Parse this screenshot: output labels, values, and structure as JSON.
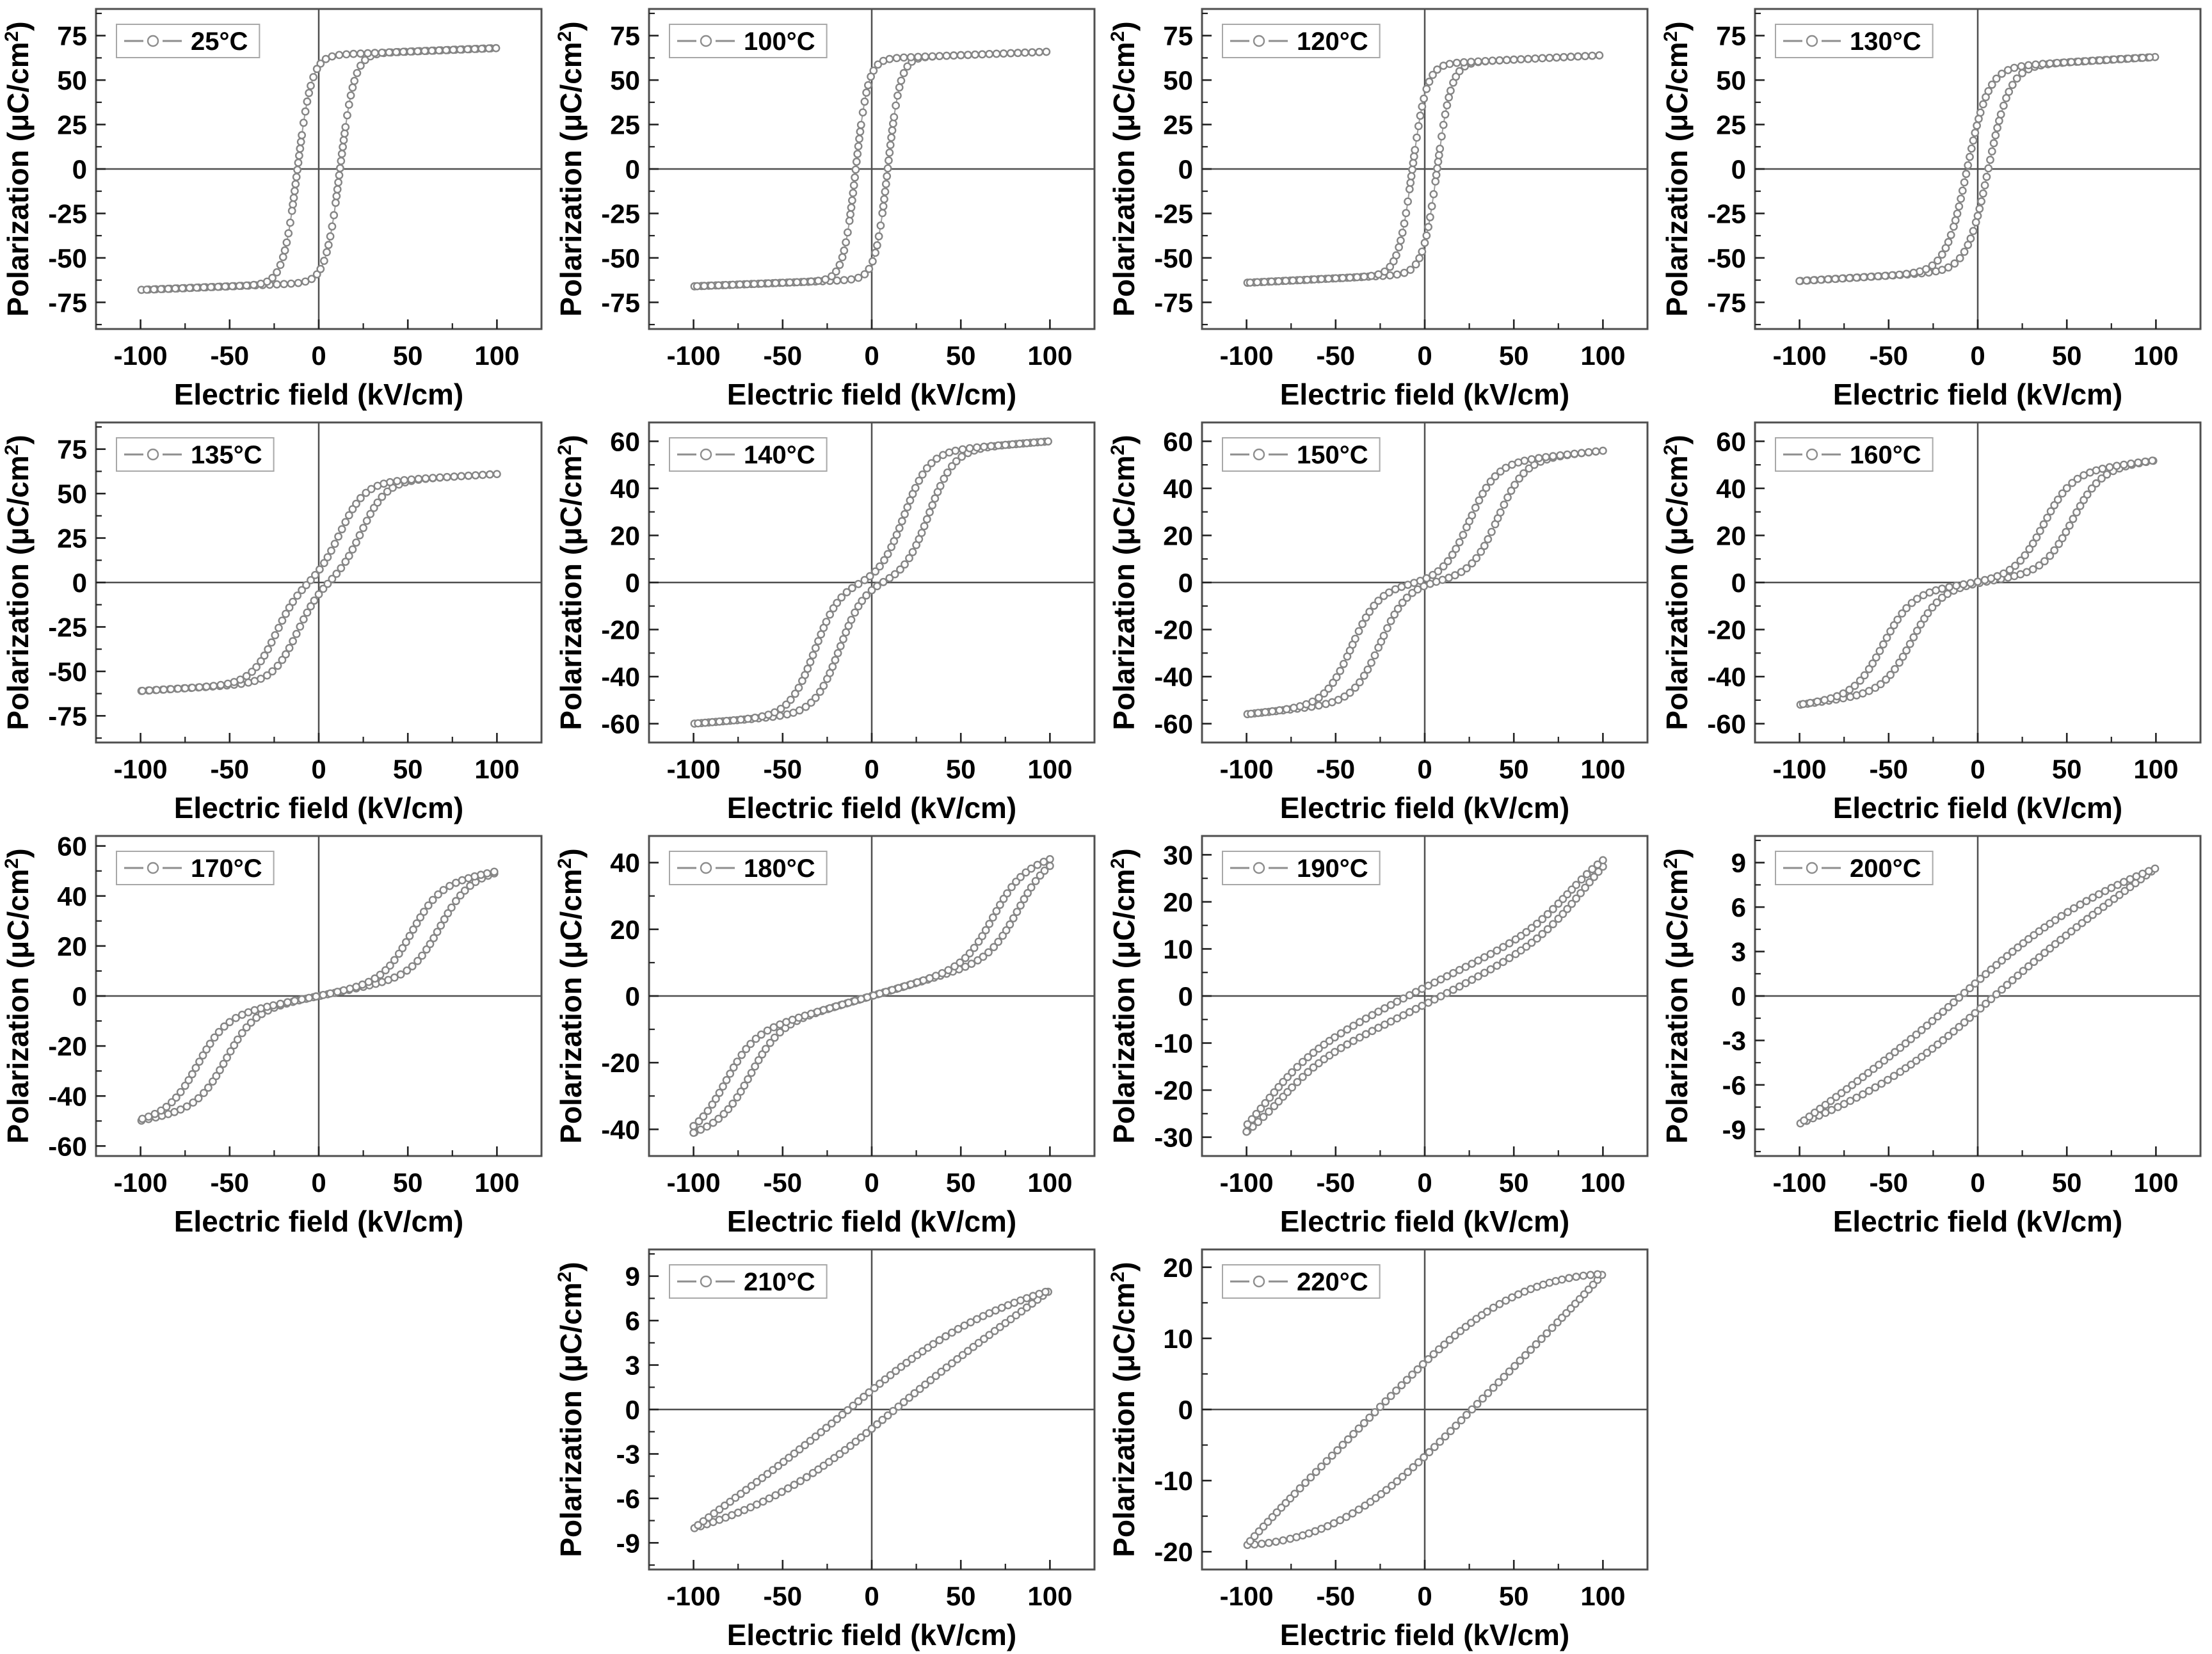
{
  "figure": {
    "x_axis_label": "Electric field (kV/cm)",
    "y_axis_label": "Polarization (μC/cm²)",
    "y_axis_label_prefix": "Polarization (μC/cm",
    "y_axis_label_sup": "2",
    "y_axis_label_suffix": ")",
    "marker_style": "open-circle-with-line",
    "colors": {
      "curve": "#9c9c9c",
      "marker_stroke": "#858585",
      "frame": "#4f4f4f",
      "zero_line": "#4f4f4f",
      "legend_border": "#a8a8a8",
      "text": "#000000",
      "background": "#ffffff"
    }
  },
  "layout": {
    "rows": [
      [
        0,
        1,
        2,
        3
      ],
      [
        4,
        5,
        6,
        7
      ],
      [
        8,
        9,
        10,
        11
      ],
      [
        null,
        12,
        13,
        null
      ]
    ]
  },
  "chart_data": [
    {
      "type": "loop",
      "legend": "25°C",
      "xlim": [
        -125,
        125
      ],
      "x_ticks": [
        -100,
        -50,
        0,
        50,
        100
      ],
      "x_minor_step": 25,
      "ylim": [
        -90,
        90
      ],
      "y_ticks": [
        75,
        50,
        25,
        0,
        -25,
        -50,
        -75
      ],
      "y_tick_step": 25,
      "loop": {
        "lin": 0.04,
        "A": 64,
        "w": 8,
        "p": 0,
        "h": 12,
        "g": 0,
        "Emax": 100
      },
      "approx": {
        "pmax_uC_cm2": 68,
        "pr_uC_cm2": 58,
        "ec_kV_cm": 12
      }
    },
    {
      "type": "loop",
      "legend": "100°C",
      "xlim": [
        -125,
        125
      ],
      "x_ticks": [
        -100,
        -50,
        0,
        50,
        100
      ],
      "x_minor_step": 25,
      "ylim": [
        -90,
        90
      ],
      "y_ticks": [
        75,
        50,
        25,
        0,
        -25,
        -50,
        -75
      ],
      "y_tick_step": 25,
      "loop": {
        "lin": 0.04,
        "A": 62,
        "w": 7,
        "p": 0,
        "h": 9,
        "g": 0,
        "Emax": 100
      },
      "approx": {
        "pmax_uC_cm2": 66,
        "pr_uC_cm2": 53,
        "ec_kV_cm": 9
      }
    },
    {
      "type": "loop",
      "legend": "120°C",
      "xlim": [
        -125,
        125
      ],
      "x_ticks": [
        -100,
        -50,
        0,
        50,
        100
      ],
      "x_minor_step": 25,
      "ylim": [
        -90,
        90
      ],
      "y_ticks": [
        75,
        50,
        25,
        0,
        -25,
        -50,
        -75
      ],
      "y_tick_step": 25,
      "loop": {
        "lin": 0.05,
        "A": 59,
        "w": 8,
        "p": 0,
        "h": 7,
        "g": 0,
        "Emax": 100
      },
      "approx": {
        "pmax_uC_cm2": 64,
        "pr_uC_cm2": 43,
        "ec_kV_cm": 7
      }
    },
    {
      "type": "loop",
      "legend": "130°C",
      "xlim": [
        -125,
        125
      ],
      "x_ticks": [
        -100,
        -50,
        0,
        50,
        100
      ],
      "x_minor_step": 25,
      "ylim": [
        -90,
        90
      ],
      "y_ticks": [
        75,
        50,
        25,
        0,
        -25,
        -50,
        -75
      ],
      "y_tick_step": 25,
      "loop": {
        "lin": 0.06,
        "A": 57,
        "w": 12,
        "p": 0,
        "h": 6,
        "g": 0,
        "Emax": 100
      },
      "approx": {
        "pmax_uC_cm2": 63,
        "pr_uC_cm2": 28,
        "ec_kV_cm": 6
      }
    },
    {
      "type": "loop",
      "legend": "135°C",
      "xlim": [
        -125,
        125
      ],
      "x_ticks": [
        -100,
        -50,
        0,
        50,
        100
      ],
      "x_minor_step": 25,
      "ylim": [
        -90,
        90
      ],
      "y_ticks": [
        75,
        50,
        25,
        0,
        -25,
        -50,
        -75
      ],
      "y_tick_step": 25,
      "loop": {
        "lin": 0.06,
        "A": 55,
        "w": 14,
        "p": 18,
        "h": 6,
        "g": 0,
        "Emax": 100
      },
      "approx": {
        "pmax_uC_cm2": 62,
        "pr_uC_cm2": 8,
        "ec_kV_cm": 5
      }
    },
    {
      "type": "loop",
      "legend": "140°C",
      "xlim": [
        -125,
        125
      ],
      "x_ticks": [
        -100,
        -50,
        0,
        50,
        100
      ],
      "x_minor_step": 25,
      "ylim": [
        -68,
        68
      ],
      "y_ticks": [
        60,
        40,
        20,
        0,
        -20,
        -40,
        -60
      ],
      "y_tick_step": 20,
      "loop": {
        "lin": 0.06,
        "A": 54,
        "w": 14,
        "p": 25,
        "h": 7,
        "g": 0,
        "Emax": 100
      },
      "approx": {
        "pmax_uC_cm2": 60,
        "pr_uC_cm2": 4,
        "ec_kV_cm": 3
      }
    },
    {
      "type": "loop",
      "legend": "150°C",
      "xlim": [
        -125,
        125
      ],
      "x_ticks": [
        -100,
        -50,
        0,
        50,
        100
      ],
      "x_minor_step": 25,
      "ylim": [
        -68,
        68
      ],
      "y_ticks": [
        60,
        40,
        20,
        0,
        -20,
        -40,
        -60
      ],
      "y_tick_step": 20,
      "loop": {
        "lin": 0.08,
        "A": 48,
        "w": 15,
        "p": 33,
        "h": 8,
        "g": 0,
        "Emax": 100
      },
      "approx": {
        "pmax_uC_cm2": 57,
        "pr_uC_cm2": 3,
        "ec_kV_cm": 3
      }
    },
    {
      "type": "loop",
      "legend": "160°C",
      "xlim": [
        -125,
        125
      ],
      "x_ticks": [
        -100,
        -50,
        0,
        50,
        100
      ],
      "x_minor_step": 25,
      "ylim": [
        -68,
        68
      ],
      "y_ticks": [
        60,
        40,
        20,
        0,
        -20,
        -40,
        -60
      ],
      "y_tick_step": 20,
      "loop": {
        "lin": 0.1,
        "A": 42,
        "w": 16,
        "p": 45,
        "h": 8,
        "g": 0,
        "Emax": 100
      },
      "approx": {
        "pmax_uC_cm2": 53,
        "pr_uC_cm2": 3,
        "ec_kV_cm": 3
      }
    },
    {
      "type": "loop",
      "legend": "170°C",
      "xlim": [
        -125,
        125
      ],
      "x_ticks": [
        -100,
        -50,
        0,
        50,
        100
      ],
      "x_minor_step": 25,
      "ylim": [
        -64,
        64
      ],
      "y_ticks": [
        60,
        40,
        20,
        0,
        -20,
        -40,
        -60
      ],
      "y_tick_step": 20,
      "loop": {
        "lin": 0.14,
        "A": 36,
        "w": 16,
        "p": 60,
        "h": 8,
        "g": 0,
        "Emax": 100
      },
      "approx": {
        "pmax_uC_cm2": 49,
        "pr_uC_cm2": 3,
        "ec_kV_cm": 3
      }
    },
    {
      "type": "loop",
      "legend": "180°C",
      "xlim": [
        -125,
        125
      ],
      "x_ticks": [
        -100,
        -50,
        0,
        50,
        100
      ],
      "x_minor_step": 25,
      "ylim": [
        -48,
        48
      ],
      "y_ticks": [
        40,
        20,
        0,
        -20,
        -40
      ],
      "y_tick_step": 20,
      "loop": {
        "lin": 0.155,
        "A": 26,
        "w": 16,
        "p": 75,
        "h": 7,
        "g": 0,
        "Emax": 100
      },
      "approx": {
        "pmax_uC_cm2": 39,
        "pr_uC_cm2": 2,
        "ec_kV_cm": 3
      }
    },
    {
      "type": "loop",
      "legend": "190°C",
      "xlim": [
        -125,
        125
      ],
      "x_ticks": [
        -100,
        -50,
        0,
        50,
        100
      ],
      "x_minor_step": 25,
      "ylim": [
        -34,
        34
      ],
      "y_ticks": [
        30,
        20,
        10,
        0,
        -10,
        -20,
        -30
      ],
      "y_tick_step": 10,
      "loop": {
        "lin": 0.19,
        "A": 12,
        "w": 25,
        "p": 85,
        "h": 4,
        "g": 1.8,
        "Emax": 100
      },
      "approx": {
        "pmax_uC_cm2": 27,
        "pr_uC_cm2": 2,
        "ec_kV_cm": 8
      }
    },
    {
      "type": "loop",
      "legend": "200°C",
      "xlim": [
        -125,
        125
      ],
      "x_ticks": [
        -100,
        -50,
        0,
        50,
        100
      ],
      "x_minor_step": 25,
      "ylim": [
        -10.8,
        10.8
      ],
      "y_ticks": [
        9,
        6,
        3,
        0,
        -3,
        -6,
        -9
      ],
      "y_tick_step": 3,
      "loop": {
        "lin": 0.062,
        "A": 2.6,
        "w": 60,
        "p": 0,
        "h": 0,
        "g": 1.0,
        "Emax": 100
      },
      "approx": {
        "pmax_uC_cm2": 9,
        "pr_uC_cm2": 1,
        "ec_kV_cm": 10
      }
    },
    {
      "type": "loop",
      "legend": "210°C",
      "xlim": [
        -125,
        125
      ],
      "x_ticks": [
        -100,
        -50,
        0,
        50,
        100
      ],
      "x_minor_step": 25,
      "ylim": [
        -10.8,
        10.8
      ],
      "y_ticks": [
        9,
        6,
        3,
        0,
        -3,
        -6,
        -9
      ],
      "y_tick_step": 3,
      "loop": {
        "lin": 0.057,
        "A": 2.5,
        "w": 60,
        "p": 0,
        "h": 0,
        "g": 1.3,
        "Emax": 100
      },
      "approx": {
        "pmax_uC_cm2": 8.2,
        "pr_uC_cm2": 1.2,
        "ec_kV_cm": 15
      }
    },
    {
      "type": "loop",
      "legend": "220°C",
      "xlim": [
        -125,
        125
      ],
      "x_ticks": [
        -100,
        -50,
        0,
        50,
        100
      ],
      "x_minor_step": 25,
      "ylim": [
        -22.5,
        22.5
      ],
      "y_ticks": [
        20,
        10,
        0,
        -10,
        -20
      ],
      "y_tick_step": 10,
      "loop": {
        "lin": 0.13,
        "A": 6.5,
        "w": 60,
        "p": 0,
        "h": 0,
        "g": 6.6,
        "Emax": 100
      },
      "approx": {
        "pmax_uC_cm2": 19.5,
        "pr_uC_cm2": 6,
        "ec_kV_cm": 29
      }
    }
  ]
}
